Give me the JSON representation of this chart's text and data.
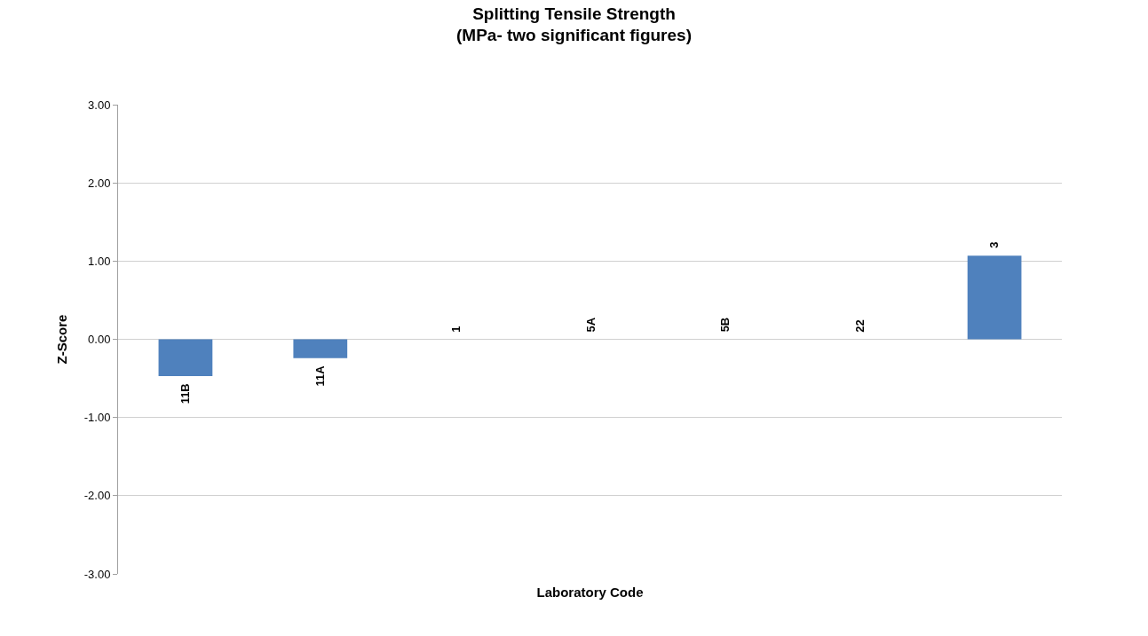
{
  "chart_data": {
    "type": "bar",
    "title": "Splitting Tensile Strength\n(MPa- two significant figures)",
    "xlabel": "Laboratory Code",
    "ylabel": "Z-Score",
    "categories": [
      "11B",
      "11A",
      "1",
      "5A",
      "5B",
      "22",
      "3"
    ],
    "values": [
      -0.47,
      -0.24,
      0,
      0,
      0,
      0,
      1.07
    ],
    "color": "#4f81bd",
    "ylim": [
      -3,
      3
    ],
    "yticks": [
      {
        "value": -3,
        "label": "-3.00"
      },
      {
        "value": -2,
        "label": "-2.00"
      },
      {
        "value": -1,
        "label": "-1.00"
      },
      {
        "value": 0,
        "label": "0.00"
      },
      {
        "value": 1,
        "label": "1.00"
      },
      {
        "value": 2,
        "label": "2.00"
      },
      {
        "value": 3,
        "label": "3.00"
      }
    ],
    "grid": "y",
    "tick_labels": "y"
  }
}
